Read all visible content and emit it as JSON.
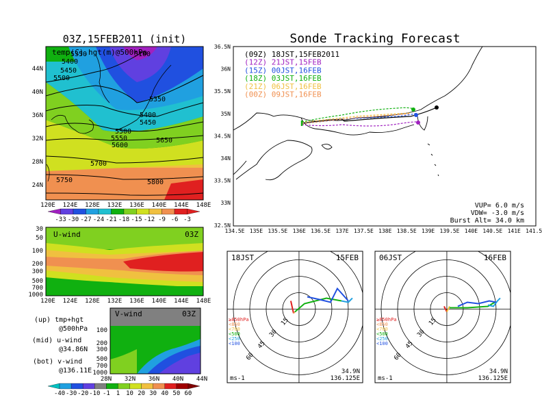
{
  "main_title": "Sonde Tracking Forecast",
  "top_map": {
    "title": "03Z,15FEB2011 (init)",
    "subtitle": "temp(C),hgt(m)@500hPa",
    "contour_labels": [
      "5350",
      "5100",
      "5400",
      "5450",
      "5500",
      "5350",
      "5400",
      "5450",
      "5500",
      "5550",
      "5600",
      "5650",
      "5700",
      "5750",
      "5800"
    ],
    "lat_labels": [
      "44N",
      "40N",
      "36N",
      "32N",
      "28N",
      "24N"
    ],
    "lon_labels": [
      "120E",
      "124E",
      "128E",
      "132E",
      "136E",
      "140E",
      "144E",
      "148E"
    ],
    "colorbar": [
      "-33",
      "-30",
      "-27",
      "-24",
      "-21",
      "-18",
      "-15",
      "-12",
      "-9",
      "-6",
      "-3"
    ]
  },
  "u_panel": {
    "label": "U-wind",
    "time": "03Z",
    "yticks": [
      "30",
      "50",
      "100",
      "200",
      "300",
      "500",
      "700",
      "1000"
    ],
    "xticks": [
      "120E",
      "124E",
      "128E",
      "132E",
      "136E",
      "140E",
      "144E",
      "148E"
    ]
  },
  "v_panel": {
    "label": "V-wind",
    "time": "03Z",
    "yticks": [
      "200",
      "300",
      "500",
      "700",
      "1000"
    ],
    "extra_yticks": [
      "100"
    ],
    "xticks": [
      "28N",
      "32N",
      "36N",
      "40N",
      "44N"
    ]
  },
  "legend_left": {
    "line1": "(up) tmp+hgt",
    "line2": "@500hPa",
    "line3": "(mid) u-wind",
    "line4": "@34.86N",
    "line5": "(bot) v-wind",
    "line6": "@136.11E"
  },
  "wind_colorbar": [
    "-40",
    "-30",
    "-20",
    "-10",
    "-1",
    "1",
    "10",
    "20",
    "30",
    "40",
    "50",
    "60"
  ],
  "track_map": {
    "xticks": [
      "134.5E",
      "135E",
      "135.5E",
      "136E",
      "136.5E",
      "137E",
      "137.5E",
      "138E",
      "138.5E",
      "139E",
      "139.5E",
      "140E",
      "140.5E",
      "141E",
      "141.5E"
    ],
    "yticks": [
      "36.5N",
      "36N",
      "35.5N",
      "35N",
      "34.5N",
      "34N",
      "33.5N",
      "33N",
      "32.5N"
    ],
    "legend": [
      {
        "text": "(09Z) 18JST,15FEB2011",
        "color": "#000000"
      },
      {
        "text": "(12Z) 21JST,15FEB",
        "color": "#a020c0"
      },
      {
        "text": "(15Z) 00JST,16FEB",
        "color": "#2050e0"
      },
      {
        "text": "(18Z) 03JST,16FEB",
        "color": "#10b010"
      },
      {
        "text": "(21Z) 06JST,16FEB",
        "color": "#f0c040"
      },
      {
        "text": "(00Z) 09JST,16FEB",
        "color": "#f09050"
      }
    ],
    "params": [
      "VUP= 6.0 m/s",
      "VDW= -3.0 m/s",
      "Burst Alt= 34.0 km"
    ]
  },
  "hodo_left": {
    "time": "18JST",
    "date": "15FEB",
    "rings": [
      "15",
      "30",
      "45",
      "60"
    ],
    "levels": [
      "≥850hPa",
      "<850",
      "<700",
      "<500",
      "<250",
      "<100"
    ],
    "level_colors": [
      "#e02020",
      "#f09050",
      "#f0c040",
      "#10b010",
      "#20a0e0",
      "#2050e0"
    ],
    "unit": "ms-1",
    "lat": "34.9N",
    "lon": "136.125E"
  },
  "hodo_right": {
    "time": "06JST",
    "date": "16FEB",
    "rings": [
      "15",
      "30",
      "45",
      "60"
    ],
    "levels": [
      "≥850hPa",
      "<850",
      "<700",
      "<500",
      "<250",
      "<100"
    ],
    "level_colors": [
      "#e02020",
      "#f09050",
      "#f0c040",
      "#10b010",
      "#20a0e0",
      "#2050e0"
    ],
    "unit": "ms-1",
    "lat": "34.9N",
    "lon": "136.125E"
  },
  "colors": {
    "shade": [
      "#a020c0",
      "#6040e0",
      "#2050e0",
      "#20a0e0",
      "#20c0d0",
      "#10b010",
      "#80d020",
      "#d0e020",
      "#f0c040",
      "#f09050",
      "#e02020"
    ]
  }
}
